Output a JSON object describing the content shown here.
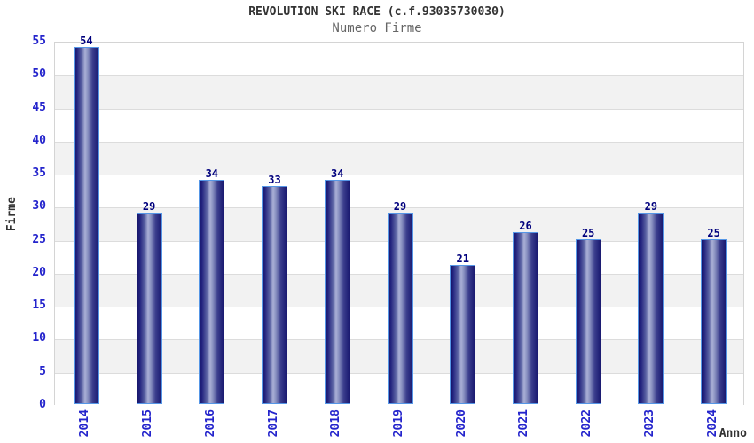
{
  "chart_data": {
    "type": "bar",
    "title": "REVOLUTION SKI RACE (c.f.93035730030)",
    "subtitle": "Numero Firme",
    "xlabel": "Anno",
    "ylabel": "Firme",
    "categories": [
      "2014",
      "2015",
      "2016",
      "2017",
      "2018",
      "2019",
      "2020",
      "2021",
      "2022",
      "2023",
      "2024"
    ],
    "values": [
      54,
      29,
      34,
      33,
      34,
      29,
      21,
      26,
      25,
      29,
      25
    ],
    "ylim": [
      0,
      55
    ],
    "ytick_step": 5,
    "ytick_labels": [
      "0",
      "5",
      "10",
      "15",
      "20",
      "25",
      "30",
      "35",
      "40",
      "45",
      "50",
      "55"
    ],
    "grid": "horizontal-only",
    "legend": "none",
    "value_labels_shown": true,
    "colors": {
      "bar_gradient_edge": "#191970",
      "bar_gradient_center": "#aab0d6",
      "bar_border": "#5596e6",
      "tick_label": "#2424cc",
      "value_label": "#00007d",
      "title": "#333333",
      "subtitle": "#666666",
      "axis_title": "#333333",
      "band_alternate": "#f2f2f2",
      "band_main": "#ffffff",
      "gridline": "#dcdcdc",
      "background": "#ffffff"
    }
  }
}
